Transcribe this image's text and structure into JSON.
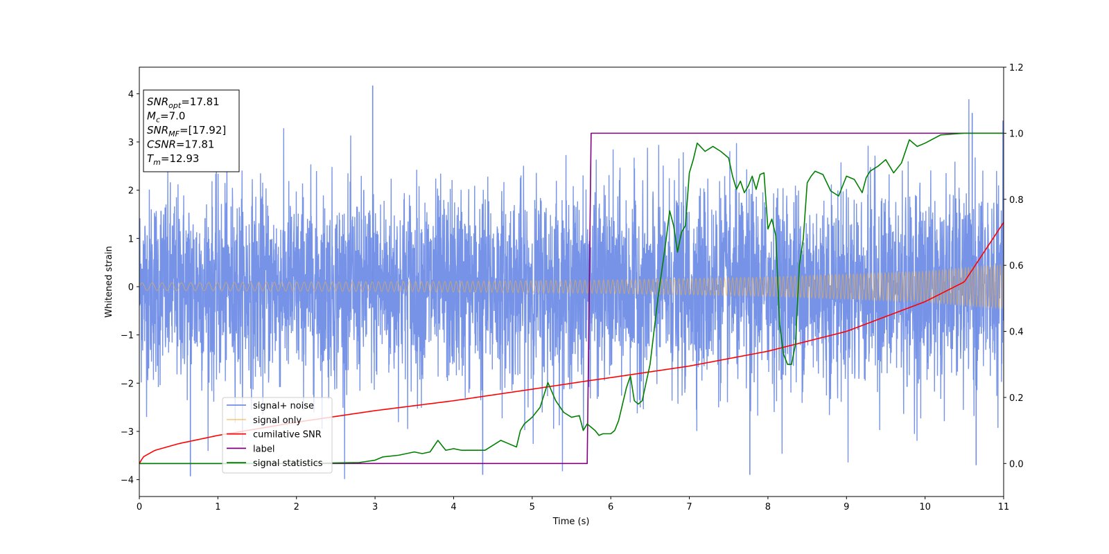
{
  "chart_data": {
    "type": "line",
    "xlabel": "Time (s)",
    "ylabel": "Whitened strain",
    "xlim": [
      0,
      11
    ],
    "ylim": [
      -4.35,
      4.55
    ],
    "y2lim": [
      -0.1,
      1.2
    ],
    "x_ticks": [
      "0",
      "1",
      "2",
      "3",
      "4",
      "5",
      "6",
      "7",
      "8",
      "9",
      "10",
      "11"
    ],
    "y_ticks": [
      "−4",
      "−3",
      "−2",
      "−1",
      "0",
      "1",
      "2",
      "3",
      "4"
    ],
    "y2_ticks": [
      "0.0",
      "0.2",
      "0.4",
      "0.6",
      "0.8",
      "1.0",
      "1.2"
    ],
    "grid": false,
    "legend_position": "lower-left",
    "series": [
      {
        "name": "signal+ noise",
        "axis": "left",
        "color": "#6f8de6",
        "description_points": [
          [
            0,
            0
          ],
          [
            2.97,
            4.17
          ],
          [
            0.65,
            -3.93
          ],
          [
            4.37,
            -3.9
          ],
          [
            7.77,
            -3.9
          ],
          [
            10.6,
            3.6
          ],
          [
            10.65,
            -3.7
          ]
        ]
      },
      {
        "name": "signal only",
        "axis": "left",
        "color": "#f5b041",
        "envelope": [
          [
            0,
            0.08
          ],
          [
            4,
            0.11
          ],
          [
            6,
            0.14
          ],
          [
            8,
            0.2
          ],
          [
            10,
            0.32
          ],
          [
            11,
            0.46
          ]
        ]
      },
      {
        "name": "cumilative SNR",
        "axis": "right",
        "color": "#ff0000",
        "x": [
          0,
          0.05,
          0.2,
          0.5,
          1,
          2,
          3,
          4,
          5,
          5.7,
          6,
          7,
          8,
          9,
          10,
          10.5,
          11
        ],
        "y": [
          0.0,
          0.02,
          0.04,
          0.06,
          0.085,
          0.125,
          0.16,
          0.19,
          0.225,
          0.25,
          0.26,
          0.295,
          0.34,
          0.4,
          0.49,
          0.55,
          0.73
        ]
      },
      {
        "name": "label",
        "axis": "right",
        "color": "#800080",
        "x": [
          0,
          5.7,
          5.75,
          11
        ],
        "y": [
          0,
          0,
          1,
          1
        ]
      },
      {
        "name": "signal statistics",
        "axis": "right",
        "color": "#008000",
        "x": [
          0,
          1,
          2,
          2.8,
          3.0,
          3.1,
          3.3,
          3.5,
          3.6,
          3.7,
          3.8,
          3.9,
          4.0,
          4.1,
          4.2,
          4.4,
          4.5,
          4.6,
          4.7,
          4.8,
          4.85,
          4.9,
          5.0,
          5.1,
          5.2,
          5.3,
          5.4,
          5.5,
          5.6,
          5.65,
          5.7,
          5.75,
          5.8,
          5.85,
          5.9,
          6.0,
          6.05,
          6.1,
          6.15,
          6.2,
          6.25,
          6.3,
          6.35,
          6.4,
          6.5,
          6.6,
          6.7,
          6.75,
          6.8,
          6.85,
          6.9,
          6.95,
          7.0,
          7.05,
          7.1,
          7.2,
          7.3,
          7.4,
          7.5,
          7.55,
          7.6,
          7.65,
          7.7,
          7.75,
          7.8,
          7.85,
          7.9,
          7.95,
          8.0,
          8.05,
          8.1,
          8.15,
          8.2,
          8.25,
          8.3,
          8.35,
          8.4,
          8.45,
          8.5,
          8.55,
          8.6,
          8.7,
          8.8,
          8.9,
          9.0,
          9.1,
          9.2,
          9.25,
          9.3,
          9.4,
          9.5,
          9.6,
          9.7,
          9.8,
          9.9,
          10.0,
          10.2,
          10.5,
          11.0
        ],
        "y": [
          0,
          0,
          0,
          0.003,
          0.01,
          0.02,
          0.025,
          0.035,
          0.03,
          0.035,
          0.07,
          0.04,
          0.045,
          0.04,
          0.04,
          0.04,
          0.055,
          0.07,
          0.06,
          0.05,
          0.1,
          0.12,
          0.14,
          0.17,
          0.245,
          0.19,
          0.155,
          0.14,
          0.145,
          0.1,
          0.12,
          0.11,
          0.1,
          0.085,
          0.09,
          0.09,
          0.1,
          0.13,
          0.18,
          0.23,
          0.265,
          0.19,
          0.18,
          0.19,
          0.3,
          0.5,
          0.67,
          0.765,
          0.72,
          0.64,
          0.7,
          0.72,
          0.88,
          0.92,
          0.97,
          0.945,
          0.96,
          0.945,
          0.925,
          0.87,
          0.83,
          0.855,
          0.82,
          0.84,
          0.87,
          0.83,
          0.875,
          0.88,
          0.71,
          0.74,
          0.69,
          0.42,
          0.33,
          0.3,
          0.3,
          0.36,
          0.6,
          0.68,
          0.85,
          0.87,
          0.885,
          0.875,
          0.825,
          0.81,
          0.87,
          0.86,
          0.82,
          0.865,
          0.885,
          0.9,
          0.92,
          0.88,
          0.91,
          0.98,
          0.96,
          0.97,
          0.995,
          1.0,
          1.0
        ]
      }
    ],
    "annotation_lines": [
      {
        "main": "SNR",
        "sub": "opt",
        "rest": "=17.81"
      },
      {
        "main": "M",
        "sub": "c",
        "rest": "=7.0"
      },
      {
        "main": "SNR",
        "sub": "MF",
        "rest": "=[17.92]"
      },
      {
        "main": "CSNR",
        "sub": "",
        "rest": "=17.81"
      },
      {
        "main": "T",
        "sub": "m",
        "rest": "=12.93"
      }
    ]
  }
}
